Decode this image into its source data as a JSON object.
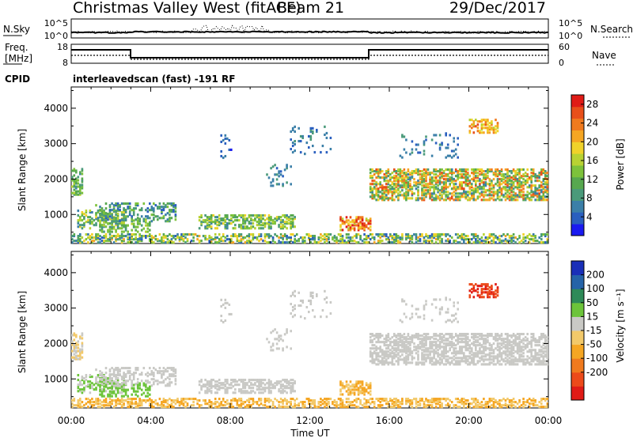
{
  "header": {
    "station_title": "Christmas Valley West (fitACF)",
    "beam_label": "Beam 21",
    "date": "29/Dec/2017"
  },
  "noise_panel": {
    "left_label": "N.Sky",
    "left_ticks": [
      "10^5",
      "10^0"
    ],
    "right_label": "N.Search",
    "right_ticks": [
      "10^5",
      "10^0"
    ]
  },
  "freq_panel": {
    "left_label_line1": "Freq.",
    "left_label_line2": "[MHz]",
    "left_ticks": [
      "18",
      "8"
    ],
    "right_label": "Nave",
    "right_ticks": [
      "60",
      "0"
    ]
  },
  "cpid": {
    "label": "CPID",
    "program": "interleavedscan (fast) -191 RF"
  },
  "colors": {
    "power": [
      "#1a1af0",
      "#2a5fbf",
      "#3b7fa8",
      "#4a9a7a",
      "#57a84f",
      "#7dc23b",
      "#b8d233",
      "#f0d22a",
      "#f5a623",
      "#f07a1e",
      "#e84f1a",
      "#e01b16"
    ],
    "velocity": [
      "#1a2fb8",
      "#2563a8",
      "#2e8a58",
      "#6cc43a",
      "#c9c9c5",
      "#f2c96a",
      "#f5a623",
      "#f07a1e",
      "#ec4a1a",
      "#e01b16"
    ]
  },
  "chart_data": [
    {
      "type": "heatmap",
      "name": "Power",
      "ylabel": "Slant Range [km]",
      "yticks": [
        "1000",
        "2000",
        "3000",
        "4000"
      ],
      "colorbar_label": "Power [dB]",
      "colorbar_ticks": [
        "4",
        "8",
        "12",
        "16",
        "20",
        "24",
        "28"
      ],
      "colorbar_range": [
        0,
        30
      ]
    },
    {
      "type": "heatmap",
      "name": "Velocity",
      "ylabel": "Slant Range [km]",
      "yticks": [
        "1000",
        "2000",
        "3000",
        "4000"
      ],
      "colorbar_label": "Velocity [m s⁻¹]",
      "colorbar_ticks": [
        "200",
        "100",
        "50",
        "15",
        "-15",
        "-50",
        "-100",
        "-200"
      ]
    }
  ],
  "xaxis": {
    "label": "Time UT",
    "ticks": [
      "00:00",
      "04:00",
      "08:00",
      "12:00",
      "16:00",
      "20:00",
      "00:00"
    ]
  }
}
